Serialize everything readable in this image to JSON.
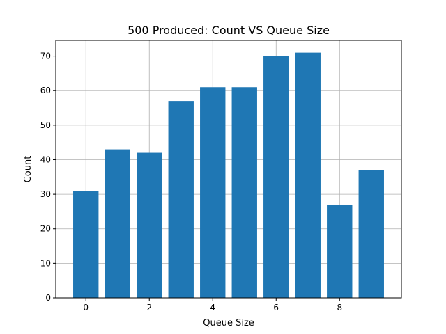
{
  "chart_data": {
    "type": "bar",
    "title": "500 Produced: Count VS Queue Size",
    "xlabel": "Queue Size",
    "ylabel": "Count",
    "x": [
      0,
      1,
      2,
      3,
      4,
      5,
      6,
      7,
      8,
      9
    ],
    "values": [
      31,
      43,
      42,
      57,
      61,
      61,
      70,
      71,
      27,
      37
    ],
    "xlim": [
      -0.95,
      9.95
    ],
    "ylim": [
      0,
      74.55
    ],
    "xticks": [
      0,
      2,
      4,
      6,
      8
    ],
    "yticks": [
      0,
      10,
      20,
      30,
      40,
      50,
      60,
      70
    ],
    "grid": true,
    "bar_color": "#1f77b4",
    "grid_color": "#b0b0b0"
  }
}
